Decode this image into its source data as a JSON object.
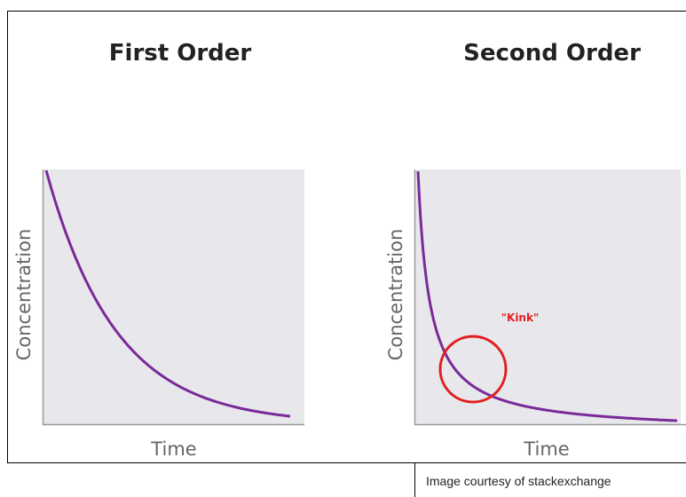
{
  "panels": [
    {
      "title": "First Order",
      "y_label": "Concentration",
      "x_label": "Time"
    },
    {
      "title": "Second Order",
      "y_label": "Concentration",
      "x_label": "Time",
      "annotation": "\"Kink\""
    }
  ],
  "credit": "Image courtesy of stackexchange"
}
